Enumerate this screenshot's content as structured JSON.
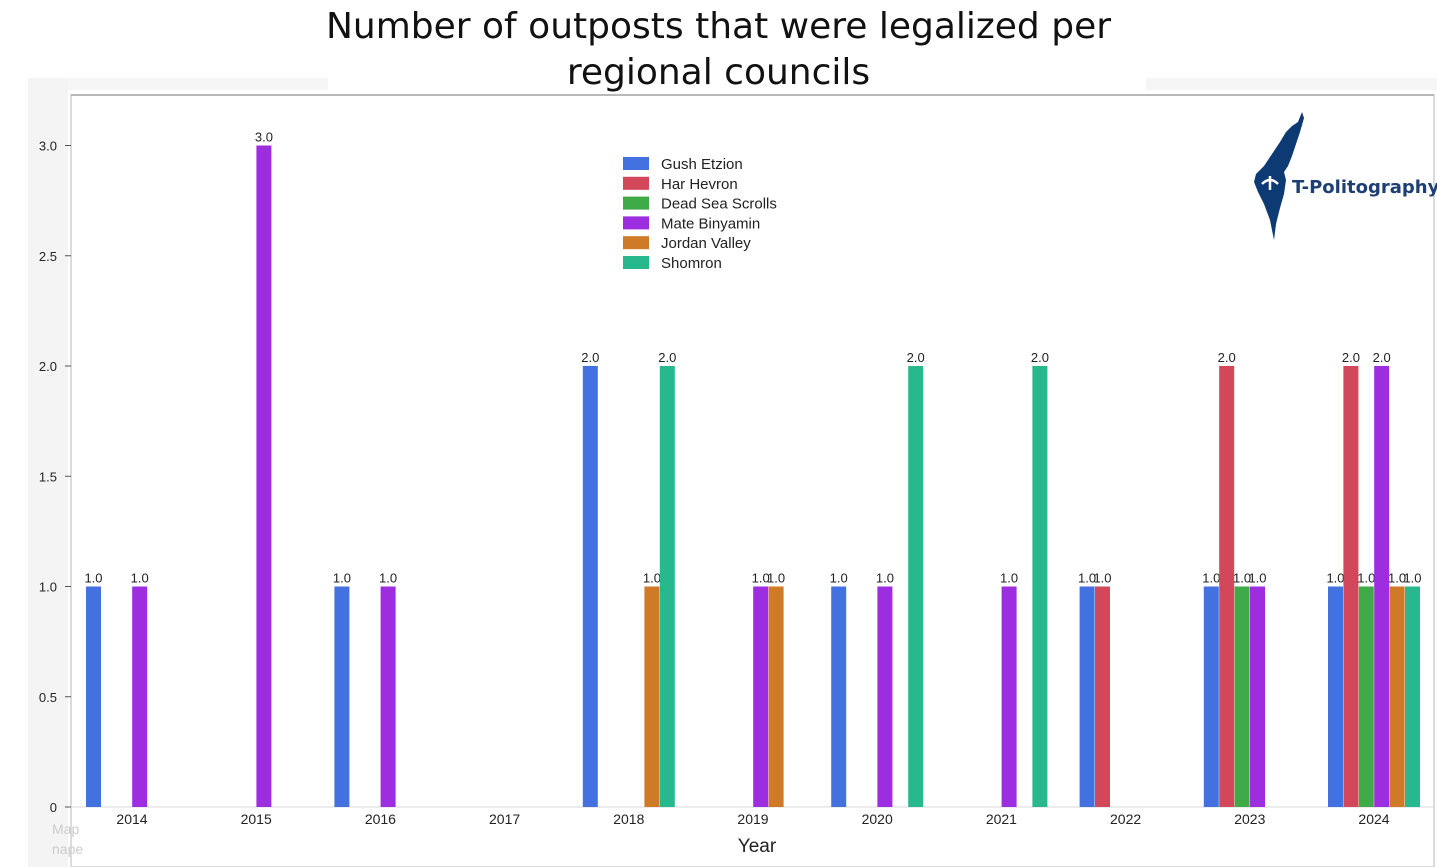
{
  "title_line1": "Number of outposts that were legalized per",
  "title_line2": "regional councils",
  "faint_label": "Map nape",
  "logo": {
    "text": "T-Politography",
    "icon": "israel-map-logo-icon",
    "color": "#0d3a73"
  },
  "chart_data": {
    "type": "bar",
    "title": "Number of outposts that were legalized per regional councils",
    "xlabel": "Year",
    "ylabel": "",
    "ylim": [
      0,
      3.2
    ],
    "yticks": [
      0,
      0.5,
      1.0,
      1.5,
      2.0,
      2.5,
      3.0
    ],
    "ytick_labels": [
      "0",
      "0.5",
      "1.0",
      "1.5",
      "2.0",
      "2.5",
      "3.0"
    ],
    "grid": false,
    "legend_position": "top-center",
    "categories": [
      "2014",
      "2015",
      "2016",
      "2017",
      "2018",
      "2019",
      "2020",
      "2021",
      "2022",
      "2023",
      "2024"
    ],
    "series": [
      {
        "name": "Gush Etzion",
        "color": "#4372e0",
        "values": [
          1,
          null,
          1,
          null,
          2,
          null,
          1,
          null,
          1,
          1,
          1
        ]
      },
      {
        "name": "Har Hevron",
        "color": "#d2485a",
        "values": [
          null,
          null,
          null,
          null,
          null,
          null,
          null,
          null,
          1,
          2,
          2
        ]
      },
      {
        "name": "Dead Sea Scrolls",
        "color": "#3eaa48",
        "values": [
          null,
          null,
          null,
          null,
          null,
          null,
          null,
          null,
          null,
          1,
          1
        ]
      },
      {
        "name": "Mate Binyamin",
        "color": "#9d2ee0",
        "values": [
          1,
          3,
          1,
          null,
          null,
          1,
          1,
          1,
          null,
          1,
          2
        ]
      },
      {
        "name": "Jordan Valley",
        "color": "#cf7a27",
        "values": [
          null,
          null,
          null,
          null,
          1,
          1,
          null,
          null,
          null,
          null,
          1
        ]
      },
      {
        "name": "Shomron",
        "color": "#27b88e",
        "values": [
          null,
          null,
          null,
          null,
          2,
          null,
          2,
          2,
          null,
          null,
          1
        ]
      }
    ],
    "value_labels": [
      "1.0",
      "2.0",
      "3.0"
    ]
  }
}
